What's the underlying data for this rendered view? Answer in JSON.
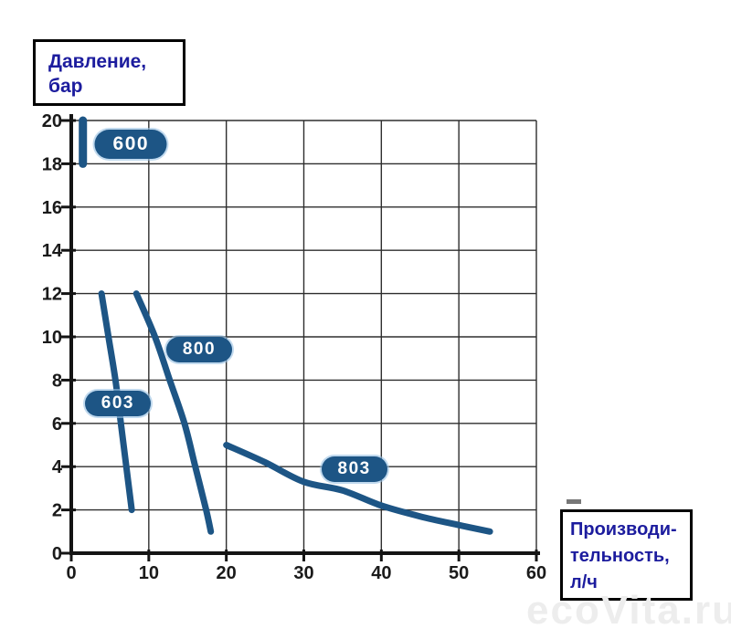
{
  "title_box": {
    "line1": "Давление,",
    "line2": "бар"
  },
  "xlabel_box": {
    "line1": "Производи-",
    "line2": "тельность,",
    "line3": "л/ч"
  },
  "watermark": "ecoVita.ru",
  "colors": {
    "curve": "#1d5585",
    "badge_background": "#1d5585",
    "badge_text": "#ffffff",
    "badge_halo": "#b3cfe6",
    "box_text_navy": "#1c1c9e",
    "axis": "#141414",
    "grid": "#2e2e2e",
    "tick_text": "#1a1a1a",
    "watermark_gray": "#ededed"
  },
  "chart_data": {
    "type": "line",
    "title": "",
    "ylabel": "Давление, бар",
    "xlabel": "Производительность, л/ч",
    "xlim": [
      0,
      60
    ],
    "ylim": [
      0,
      20
    ],
    "x_ticks": [
      0,
      10,
      20,
      30,
      40,
      50,
      60
    ],
    "y_ticks": [
      0,
      2,
      4,
      6,
      8,
      10,
      12,
      14,
      16,
      18,
      20
    ],
    "grid": true,
    "legend_position": "badges-on-curves",
    "series": [
      {
        "name": "600",
        "points": [
          [
            1.5,
            20
          ],
          [
            1.5,
            18
          ]
        ],
        "label_pos": [
          7.7,
          18.9
        ]
      },
      {
        "name": "603",
        "points": [
          [
            3.9,
            12
          ],
          [
            4.8,
            10
          ],
          [
            5.7,
            8
          ],
          [
            6.4,
            6
          ],
          [
            7.1,
            4
          ],
          [
            7.8,
            2
          ]
        ],
        "label_pos": [
          6.0,
          6.9
        ]
      },
      {
        "name": "800",
        "points": [
          [
            8.4,
            12
          ],
          [
            10.8,
            10
          ],
          [
            12.7,
            8
          ],
          [
            14.6,
            6
          ],
          [
            16.0,
            4
          ],
          [
            17.4,
            2
          ],
          [
            18.0,
            1
          ]
        ],
        "label_pos": [
          16.5,
          9.4
        ]
      },
      {
        "name": "803",
        "points": [
          [
            20,
            5
          ],
          [
            25,
            4.2
          ],
          [
            30,
            3.3
          ],
          [
            35,
            2.9
          ],
          [
            40,
            2.2
          ],
          [
            45,
            1.7
          ],
          [
            50,
            1.3
          ],
          [
            54,
            1
          ]
        ],
        "label_pos": [
          36.5,
          3.9
        ]
      }
    ]
  }
}
